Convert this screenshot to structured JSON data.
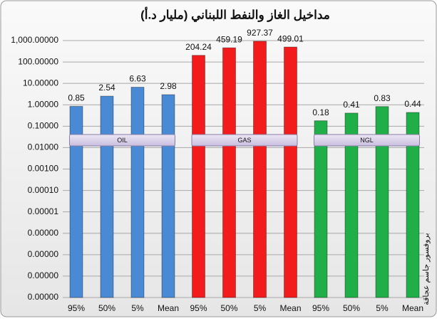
{
  "chart_data": {
    "type": "bar",
    "title": "مداخيل الغاز والنفط اللبناني (مليار د.أ)",
    "annotation": "بروفسور جاسم عجاقة",
    "log_scale": true,
    "grid": true,
    "ylim": [
      1e-09,
      1000
    ],
    "yticks": [
      {
        "value": 1000,
        "label": "1,000.00000"
      },
      {
        "value": 100,
        "label": "100.00000"
      },
      {
        "value": 10,
        "label": "10.00000"
      },
      {
        "value": 1,
        "label": "1.00000"
      },
      {
        "value": 0.1,
        "label": "0.10000"
      },
      {
        "value": 0.01,
        "label": "0.01000"
      },
      {
        "value": 0.001,
        "label": "0.00100"
      },
      {
        "value": 0.0001,
        "label": "0.00010"
      },
      {
        "value": 1e-05,
        "label": "0.00001"
      },
      {
        "value": 1e-06,
        "label": "0.00000"
      },
      {
        "value": 1e-07,
        "label": "0.00000"
      },
      {
        "value": 1e-08,
        "label": "0.00000"
      },
      {
        "value": 1e-09,
        "label": "0.00000"
      }
    ],
    "groups": [
      {
        "name": "OIL",
        "color": "#4a8ad4",
        "categories": [
          "95%",
          "50%",
          "5%",
          "Mean"
        ],
        "values": [
          0.85,
          2.54,
          6.63,
          2.98
        ]
      },
      {
        "name": "GAS",
        "color": "#f21c1c",
        "categories": [
          "95%",
          "50%",
          "5%",
          "Mean"
        ],
        "values": [
          204.24,
          459.19,
          927.37,
          499.01
        ]
      },
      {
        "name": "NGL",
        "color": "#1fae48",
        "categories": [
          "95%",
          "50%",
          "5%",
          "Mean"
        ],
        "values": [
          0.18,
          0.41,
          0.83,
          0.44
        ]
      }
    ]
  }
}
